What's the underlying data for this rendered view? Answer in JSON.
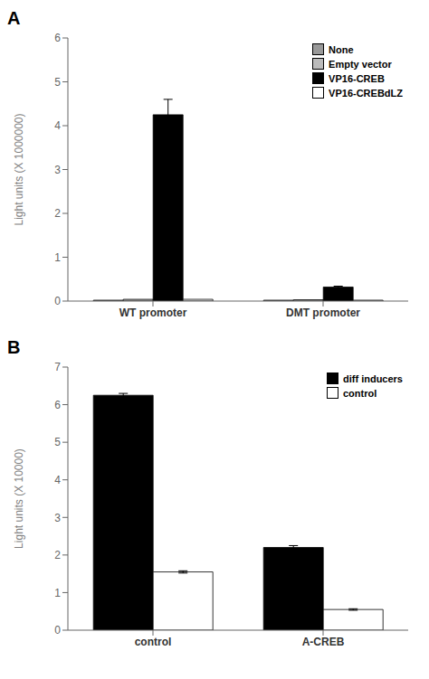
{
  "chart_data": [
    {
      "type": "bar",
      "title": "A",
      "y_label": "Light units (X 1000000)",
      "categories": [
        "WT promoter",
        "DMT promoter"
      ],
      "series": [
        {
          "name": "None",
          "color": "#999999",
          "values": [
            0.02,
            0.02
          ],
          "errors": [
            0.0,
            0.0
          ]
        },
        {
          "name": "Empty vector",
          "color": "#bbbbbb",
          "values": [
            0.04,
            0.03
          ],
          "errors": [
            0.0,
            0.0
          ]
        },
        {
          "name": "VP16-CREB",
          "color": "#000000",
          "values": [
            4.25,
            0.32
          ],
          "errors": [
            0.35,
            0.02
          ]
        },
        {
          "name": "VP16-CREBdLZ",
          "color": "#ffffff",
          "values": [
            0.04,
            0.02
          ],
          "errors": [
            0.0,
            0.0
          ]
        }
      ],
      "ylim": [
        0,
        6
      ],
      "yticks": [
        0,
        1,
        2,
        3,
        4,
        5,
        6
      ],
      "grid": false,
      "legend": "upper right"
    },
    {
      "type": "bar",
      "title": "B",
      "y_label": "Light units (X 10000)",
      "categories": [
        "control",
        "A-CREB"
      ],
      "series": [
        {
          "name": "diff inducers",
          "color": "#000000",
          "values": [
            6.25,
            2.2
          ],
          "errors": [
            0.05,
            0.05
          ]
        },
        {
          "name": "control",
          "color": "#ffffff",
          "values": [
            1.55,
            0.55
          ],
          "errors": [
            0.03,
            0.02
          ]
        }
      ],
      "ylim": [
        0,
        7
      ],
      "yticks": [
        0,
        1,
        2,
        3,
        4,
        5,
        6,
        7
      ],
      "grid": false,
      "legend": "upper right"
    }
  ]
}
